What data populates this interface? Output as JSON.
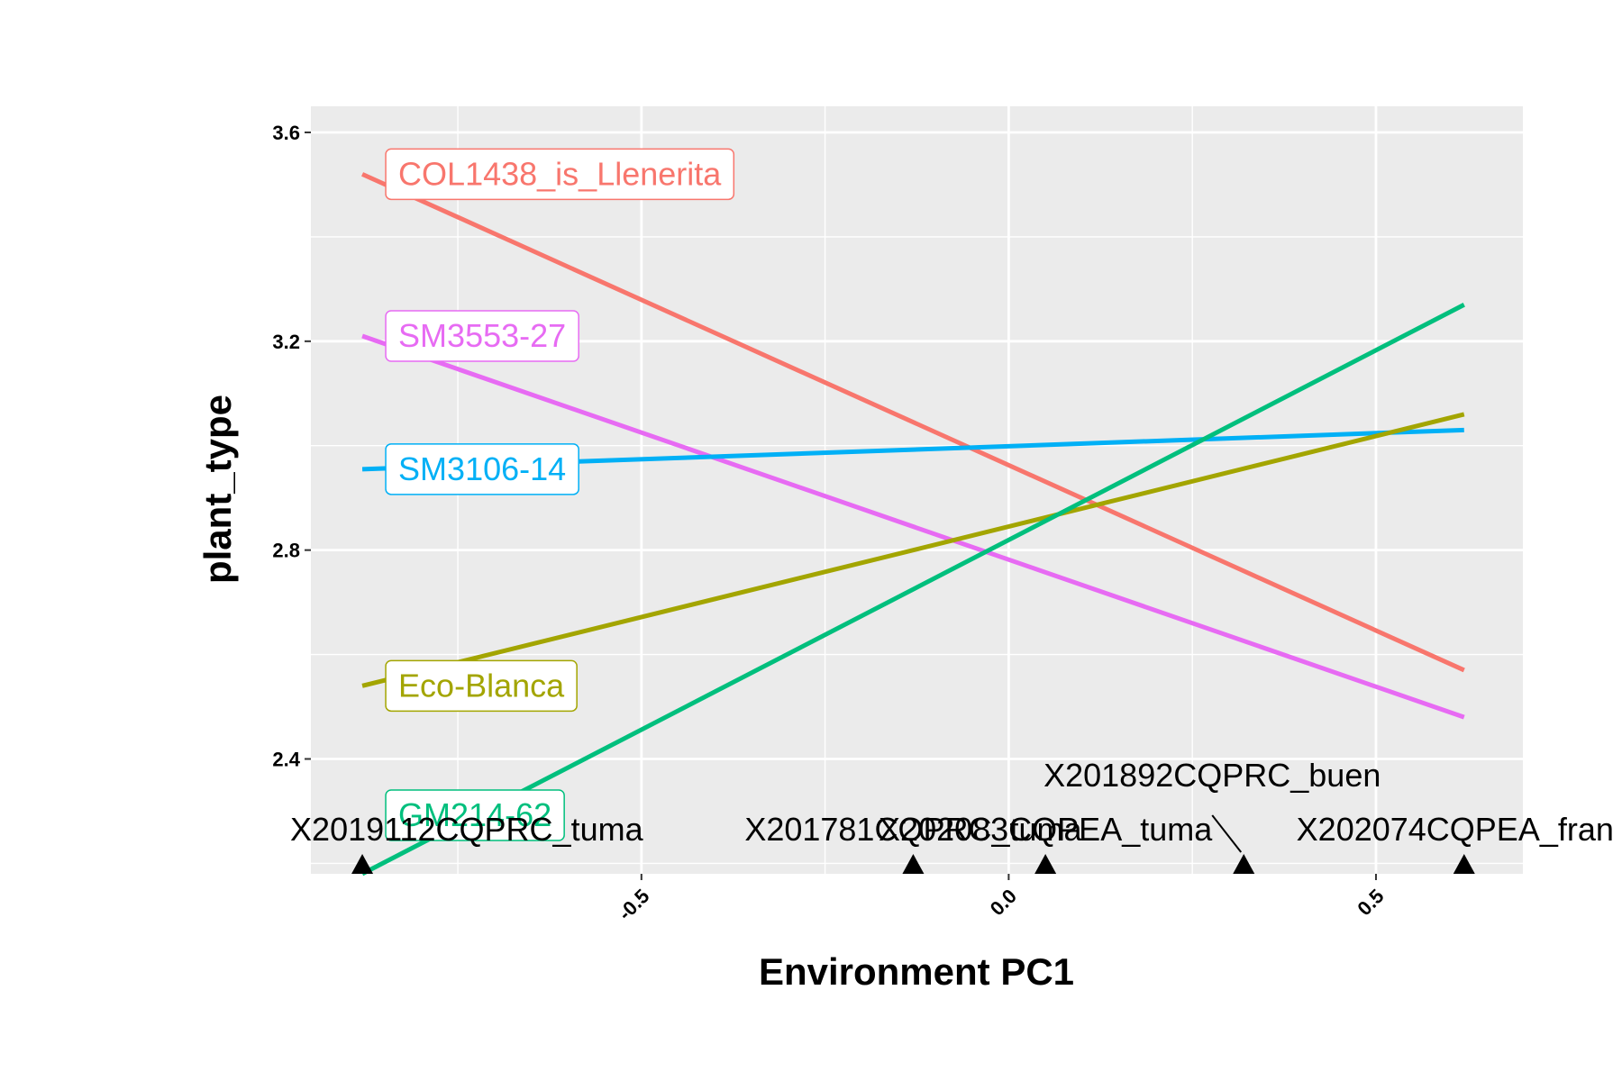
{
  "chart_data": {
    "type": "line",
    "xlabel": "Environment PC1",
    "ylabel": "plant_type",
    "xlim": [
      -0.95,
      0.7
    ],
    "ylim": [
      2.18,
      3.65
    ],
    "x_ticks": [
      -0.5,
      0.0,
      0.5
    ],
    "x_tick_labels": [
      "-0.5",
      "0.0",
      "0.5"
    ],
    "y_ticks": [
      2.4,
      2.8,
      3.2,
      3.6
    ],
    "y_tick_labels": [
      "2.4",
      "2.8",
      "3.2",
      "3.6"
    ],
    "grid": true,
    "legend": "none",
    "series": [
      {
        "name": "COL1438_is_Llenerita",
        "color": "#F8766D",
        "x": [
          -0.88,
          0.62
        ],
        "y": [
          3.52,
          2.57
        ]
      },
      {
        "name": "SM3553-27",
        "color": "#E76BF3",
        "x": [
          -0.88,
          0.62
        ],
        "y": [
          3.21,
          2.48
        ]
      },
      {
        "name": "SM3106-14",
        "color": "#00B0F6",
        "x": [
          -0.88,
          0.62
        ],
        "y": [
          2.955,
          3.03
        ]
      },
      {
        "name": "Eco-Blanca",
        "color": "#A3A500",
        "x": [
          -0.88,
          0.62
        ],
        "y": [
          2.54,
          3.06
        ]
      },
      {
        "name": "GM214-62",
        "color": "#00BF7D",
        "x": [
          -0.88,
          0.62
        ],
        "y": [
          2.18,
          3.27
        ]
      }
    ],
    "environments": [
      {
        "name": "X2019112CQPRC_tuma",
        "x": -0.88
      },
      {
        "name": "X201781CQPRC_tuma",
        "x": -0.13
      },
      {
        "name": "X202083CQPEA_tuma",
        "x": 0.05
      },
      {
        "name": "X201892CQPRC_buen",
        "x": 0.32
      },
      {
        "name": "X202074CQPEA_fran",
        "x": 0.62
      }
    ]
  }
}
